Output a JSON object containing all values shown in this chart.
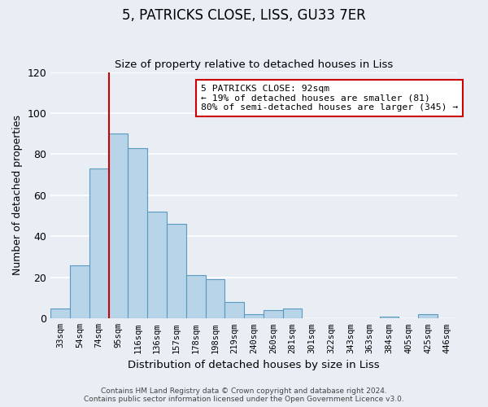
{
  "title": "5, PATRICKS CLOSE, LISS, GU33 7ER",
  "subtitle": "Size of property relative to detached houses in Liss",
  "xlabel": "Distribution of detached houses by size in Liss",
  "ylabel": "Number of detached properties",
  "bin_labels": [
    "33sqm",
    "54sqm",
    "74sqm",
    "95sqm",
    "116sqm",
    "136sqm",
    "157sqm",
    "178sqm",
    "198sqm",
    "219sqm",
    "240sqm",
    "260sqm",
    "281sqm",
    "301sqm",
    "322sqm",
    "343sqm",
    "363sqm",
    "384sqm",
    "405sqm",
    "425sqm",
    "446sqm"
  ],
  "bar_heights": [
    5,
    26,
    73,
    90,
    83,
    52,
    46,
    21,
    19,
    8,
    2,
    4,
    5,
    0,
    0,
    0,
    0,
    1,
    0,
    2,
    0
  ],
  "bar_color": "#b8d4e8",
  "bar_edge_color": "#5a9abf",
  "vline_x_idx": 3,
  "vline_color": "#cc0000",
  "ylim": [
    0,
    120
  ],
  "yticks": [
    0,
    20,
    40,
    60,
    80,
    100,
    120
  ],
  "annotation_title": "5 PATRICKS CLOSE: 92sqm",
  "annotation_line1": "← 19% of detached houses are smaller (81)",
  "annotation_line2": "80% of semi-detached houses are larger (345) →",
  "annotation_box_color": "#ffffff",
  "annotation_box_edge": "#cc0000",
  "footer_line1": "Contains HM Land Registry data © Crown copyright and database right 2024.",
  "footer_line2": "Contains public sector information licensed under the Open Government Licence v3.0.",
  "background_color": "#e8eef4",
  "grid_color": "#ffffff"
}
